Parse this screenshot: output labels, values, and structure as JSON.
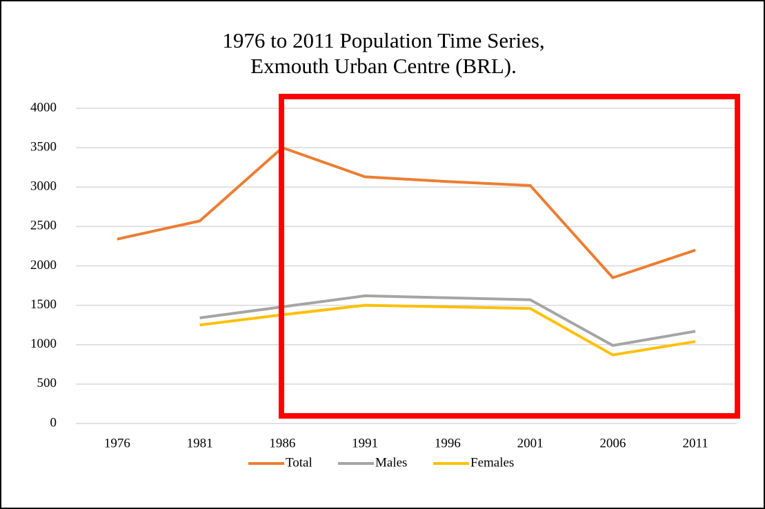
{
  "chart_data": {
    "type": "line",
    "title": [
      "1976 to 2011 Population Time Series,",
      "Exmouth Urban Centre (BRL)."
    ],
    "categories": [
      "1976",
      "1981",
      "1986",
      "1991",
      "1996",
      "2001",
      "2006",
      "2011"
    ],
    "series": [
      {
        "name": "Total",
        "color": "#ed7d31",
        "values": [
          2340,
          2570,
          3500,
          3130,
          3070,
          3020,
          1850,
          2200
        ]
      },
      {
        "name": "Males",
        "color": "#a5a5a5",
        "values": [
          null,
          1340,
          1480,
          1620,
          1595,
          1570,
          990,
          1170
        ]
      },
      {
        "name": "Females",
        "color": "#ffc000",
        "values": [
          null,
          1250,
          1380,
          1500,
          1480,
          1460,
          870,
          1040
        ]
      }
    ],
    "ylim": [
      0,
      4000
    ],
    "yticks": [
      0,
      500,
      1000,
      1500,
      2000,
      2500,
      3000,
      3500,
      4000
    ],
    "grid": true,
    "legend": "bottom"
  }
}
